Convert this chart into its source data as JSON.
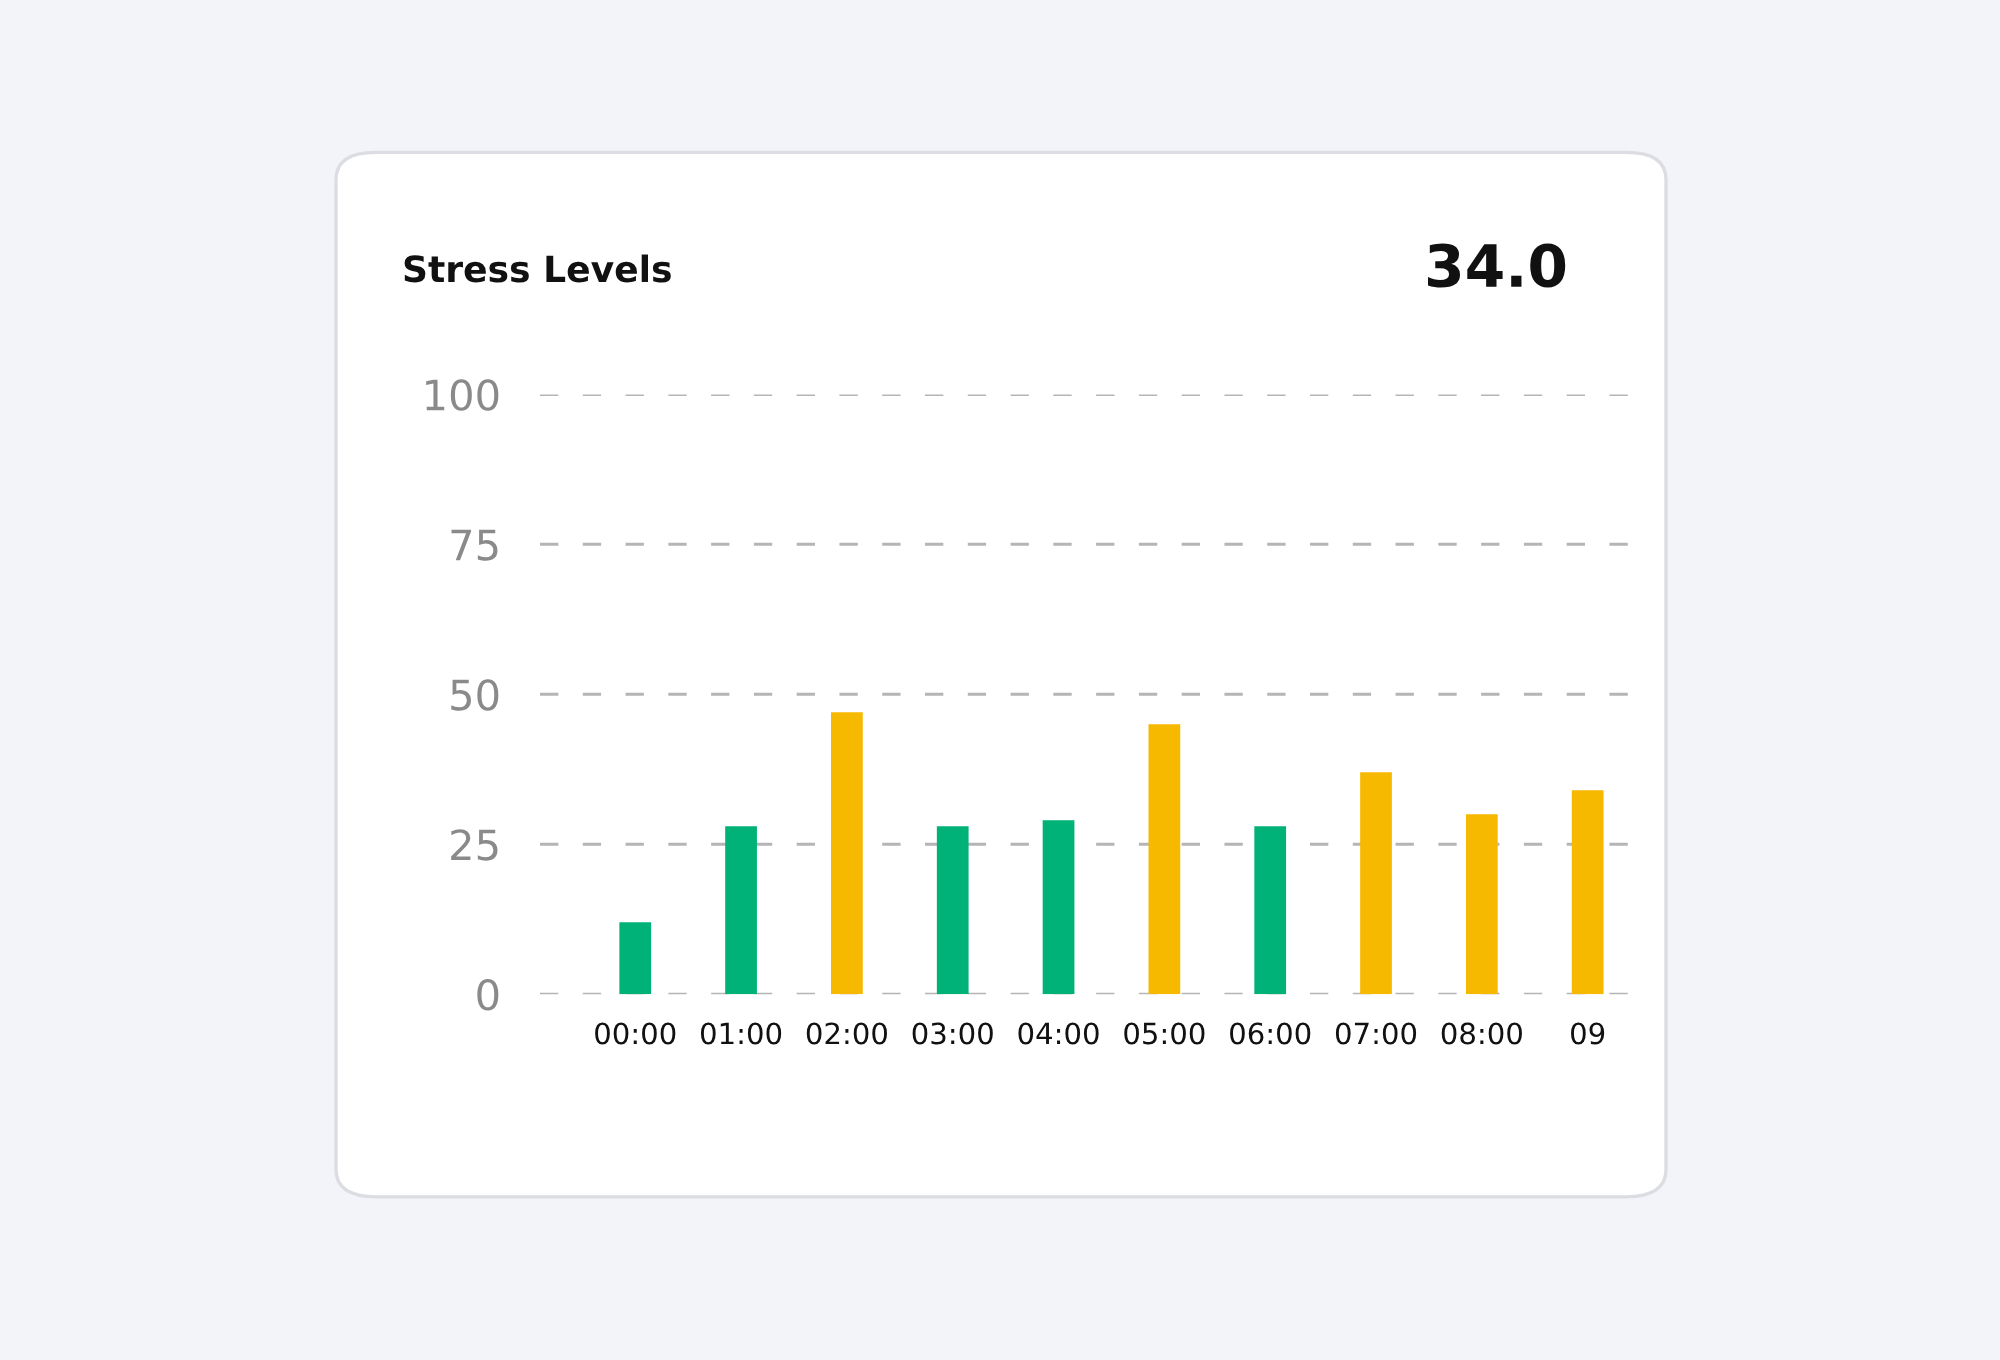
{
  "chart_data": {
    "type": "bar",
    "title": "Stress Levels",
    "annotations": [
      "34.0"
    ],
    "categories": [
      "00:00",
      "01:00",
      "02:00",
      "03:00",
      "04:00",
      "05:00",
      "06:00",
      "07:00",
      "08:00",
      "09"
    ],
    "values": [
      12,
      28,
      47,
      28,
      29,
      45,
      28,
      37,
      30,
      34
    ],
    "colors": [
      "#00b277",
      "#00b277",
      "#f7b900",
      "#00b277",
      "#00b277",
      "#f7b900",
      "#00b277",
      "#f7b900",
      "#f7b900",
      "#f7b900"
    ],
    "ylim": [
      0,
      100
    ],
    "yticks": [
      0,
      25,
      50,
      75,
      100
    ],
    "grid": "y"
  }
}
